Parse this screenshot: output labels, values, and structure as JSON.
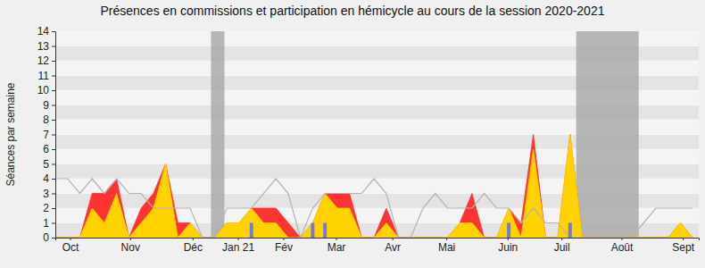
{
  "chart_data": {
    "type": "area",
    "title": "Présences en commissions et participation en hémicycle au cours de la session 2020-2021",
    "y_label": "Séances par semaine",
    "x": [
      0,
      1,
      2,
      3,
      4,
      5,
      6,
      7,
      8,
      9,
      10,
      11,
      12,
      13,
      14,
      15,
      16,
      17,
      18,
      19,
      20,
      21,
      22,
      23,
      24,
      25,
      26,
      27,
      28,
      29,
      30,
      31,
      32,
      33,
      34,
      35,
      36,
      37,
      38,
      39,
      40,
      41,
      42,
      43,
      44,
      45,
      46,
      47,
      48,
      49,
      50,
      51,
      52
    ],
    "xlim": [
      0,
      52.5
    ],
    "xticks": [
      {
        "value": 1.2,
        "label": "Oct"
      },
      {
        "value": 6.1,
        "label": "Nov"
      },
      {
        "value": 11.2,
        "label": "Déc"
      },
      {
        "value": 14.9,
        "label": "Jan 21"
      },
      {
        "value": 18.6,
        "label": "Fév"
      },
      {
        "value": 22.9,
        "label": "Mar"
      },
      {
        "value": 27.5,
        "label": "Avr"
      },
      {
        "value": 31.9,
        "label": "Mai"
      },
      {
        "value": 36.9,
        "label": "Juin"
      },
      {
        "value": 41.3,
        "label": "Juil"
      },
      {
        "value": 46.2,
        "label": "Août"
      },
      {
        "value": 51.2,
        "label": "Sept"
      }
    ],
    "ylim": [
      0,
      14
    ],
    "yticks": [
      0,
      1,
      2,
      3,
      4,
      5,
      6,
      7,
      8,
      9,
      10,
      11,
      12,
      13,
      14
    ],
    "grid": true,
    "stacked": false,
    "shaded_ranges": [
      [
        12.7,
        13.8
      ],
      [
        42.5,
        47.6
      ]
    ],
    "series": [
      {
        "type": "area",
        "color": "#ff3333",
        "values": [
          0,
          0,
          0,
          3,
          3,
          4,
          0,
          2,
          3,
          5,
          1,
          1,
          0,
          0,
          1,
          1,
          2,
          2,
          2,
          1,
          0,
          1,
          3,
          3,
          3,
          0,
          0,
          2,
          0,
          0,
          0,
          0,
          0,
          1,
          3,
          0,
          0,
          2,
          1,
          7,
          0,
          0,
          7,
          0,
          0,
          0,
          0,
          0,
          0,
          0,
          0,
          1,
          0
        ]
      },
      {
        "type": "area",
        "color": "#ffd200",
        "values": [
          0,
          0,
          0,
          2,
          1,
          3,
          0,
          1,
          2,
          5,
          0,
          1,
          0,
          0,
          1,
          1,
          2,
          1,
          1,
          0,
          0,
          1,
          3,
          2,
          2,
          0,
          0,
          1,
          0,
          0,
          0,
          0,
          0,
          1,
          1,
          0,
          0,
          2,
          0,
          6,
          0,
          0,
          7,
          0,
          0,
          0,
          0,
          0,
          0,
          0,
          0,
          1,
          0
        ]
      },
      {
        "type": "line",
        "color": "#b4b4b4",
        "values": [
          4,
          4,
          3,
          4,
          3,
          4,
          3,
          3,
          2,
          2,
          2,
          2,
          0,
          0,
          2,
          2,
          2,
          3,
          4,
          3,
          0,
          2,
          3,
          3,
          3,
          3,
          4,
          3,
          0,
          0,
          2,
          3,
          2,
          2,
          2,
          3,
          2,
          2,
          1,
          2,
          1,
          1,
          0,
          0,
          0,
          0,
          0,
          0,
          1,
          2,
          2,
          2,
          2
        ]
      },
      {
        "type": "bar",
        "color": "#7878d8",
        "values": [
          null,
          null,
          null,
          null,
          null,
          null,
          null,
          null,
          null,
          null,
          null,
          null,
          null,
          null,
          null,
          null,
          1,
          null,
          null,
          null,
          null,
          1,
          1,
          null,
          null,
          null,
          null,
          null,
          null,
          null,
          null,
          null,
          null,
          null,
          null,
          null,
          null,
          1,
          null,
          null,
          null,
          null,
          1,
          null,
          null,
          null,
          null,
          null,
          null,
          null,
          null,
          null,
          null
        ]
      }
    ]
  }
}
